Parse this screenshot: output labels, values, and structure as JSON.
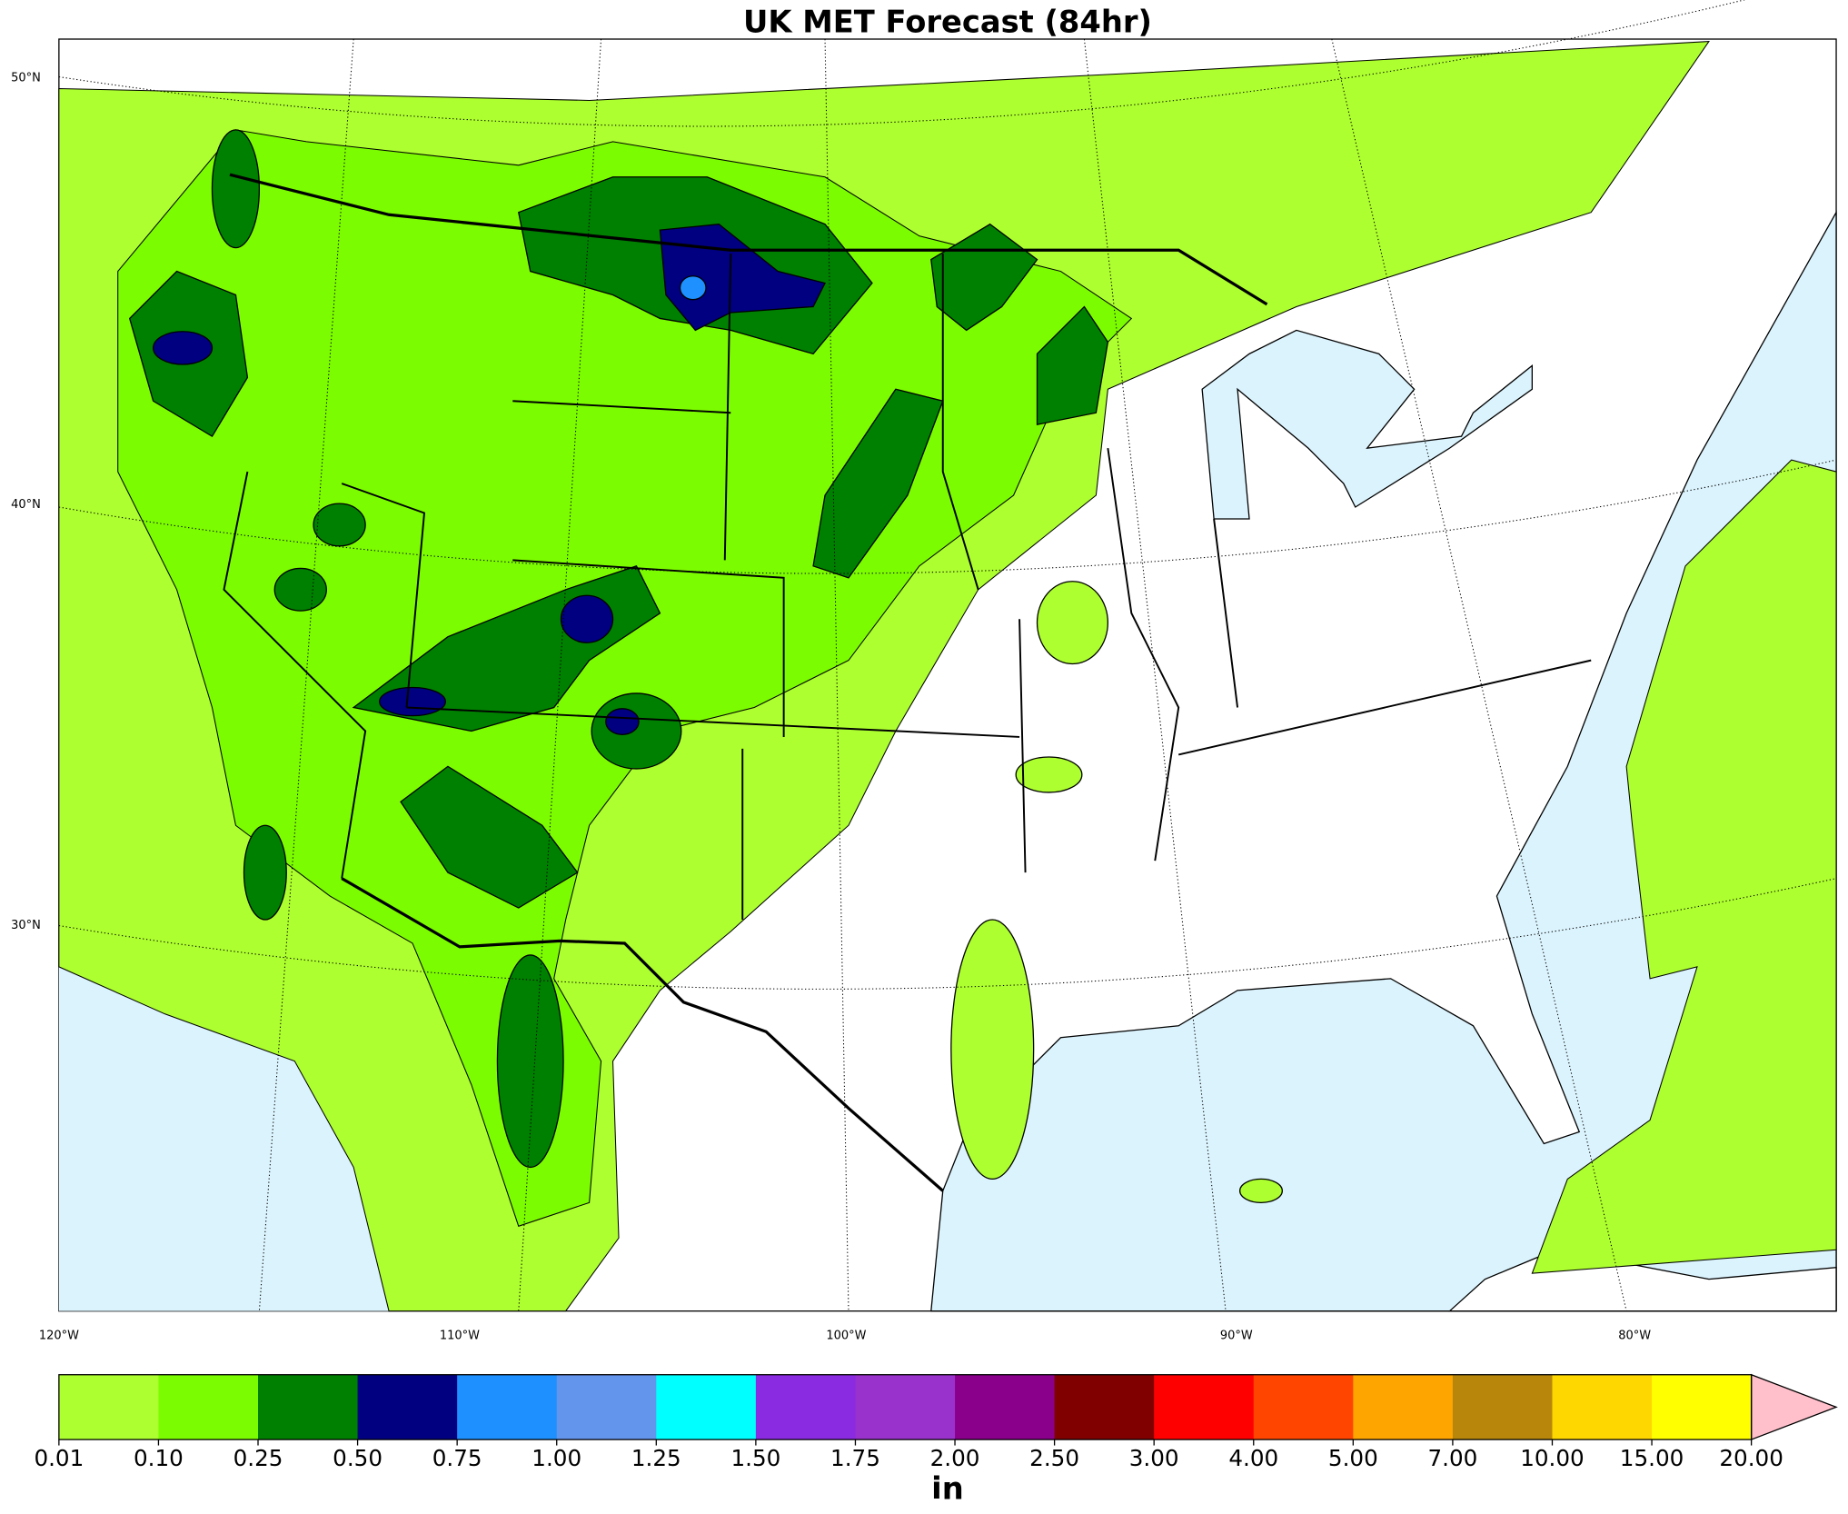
{
  "title": "UK MET Forecast (84hr)",
  "latitude_labels": [
    "50°N",
    "40°N",
    "30°N"
  ],
  "longitude_labels": [
    "120°W",
    "110°W",
    "100°W",
    "90°W",
    "80°W"
  ],
  "colorbar": {
    "labels": [
      "0.01",
      "0.10",
      "0.25",
      "0.50",
      "0.75",
      "1.00",
      "1.25",
      "1.50",
      "1.75",
      "2.00",
      "2.50",
      "3.00",
      "4.00",
      "5.00",
      "7.00",
      "10.00",
      "15.00",
      "20.00"
    ],
    "colors": [
      "#adff2f",
      "#7cfc00",
      "#008000",
      "#000080",
      "#1e90ff",
      "#6495ed",
      "#00ffff",
      "#8a2be2",
      "#9932cc",
      "#8b008b",
      "#800000",
      "#ff0000",
      "#ff4500",
      "#ffa500",
      "#b8860b",
      "#ffd700",
      "#ffff00"
    ],
    "extend_color": "#ffc0cb",
    "unit": "in"
  }
}
